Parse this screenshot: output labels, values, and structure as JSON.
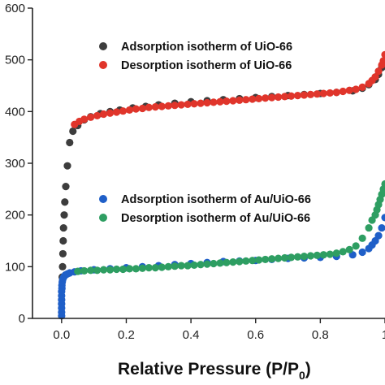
{
  "chart_data": {
    "type": "scatter",
    "title": "",
    "xlabel": "Relative Pressure (P/P",
    "xlabel_subscript": "0",
    "xlabel_close": ")",
    "ylabel": "",
    "xlim": [
      -0.09,
      1.0
    ],
    "ylim": [
      0,
      600
    ],
    "x_ticks": [
      {
        "value": 0.0,
        "label": "0.0"
      },
      {
        "value": 0.2,
        "label": "0.2"
      },
      {
        "value": 0.4,
        "label": "0.4"
      },
      {
        "value": 0.6,
        "label": "0.6"
      },
      {
        "value": 0.8,
        "label": "0.8"
      },
      {
        "value": 1.0,
        "label": "1"
      }
    ],
    "y_ticks": [
      {
        "value": 0,
        "label": "0"
      },
      {
        "value": 100,
        "label": "100"
      },
      {
        "value": 200,
        "label": "200"
      },
      {
        "value": 300,
        "label": "300"
      },
      {
        "value": 400,
        "label": "400"
      },
      {
        "value": 500,
        "label": "500"
      },
      {
        "value": 600,
        "label": "600"
      }
    ],
    "grid": false,
    "legend_placement": "inside",
    "series": [
      {
        "name": "Adsorption isotherm of UiO-66",
        "color": "#3d3d3d",
        "x": [
          0.002,
          0.003,
          0.004,
          0.005,
          0.006,
          0.008,
          0.01,
          0.013,
          0.018,
          0.025,
          0.035,
          0.05,
          0.07,
          0.09,
          0.12,
          0.15,
          0.18,
          0.22,
          0.26,
          0.3,
          0.35,
          0.4,
          0.45,
          0.5,
          0.55,
          0.6,
          0.65,
          0.7,
          0.75,
          0.8,
          0.85,
          0.9,
          0.93,
          0.95,
          0.97,
          0.98,
          0.99,
          1.0
        ],
        "y": [
          80,
          100,
          125,
          150,
          175,
          200,
          225,
          255,
          295,
          340,
          362,
          373,
          384,
          390,
          396,
          400,
          403,
          407,
          410,
          413,
          416,
          419,
          421,
          423,
          425,
          427,
          429,
          431,
          433,
          435,
          437,
          440,
          445,
          452,
          462,
          472,
          485,
          498
        ]
      },
      {
        "name": "Desorption isotherm of UiO-66",
        "color": "#e0352b",
        "x": [
          1.0,
          0.995,
          0.99,
          0.98,
          0.97,
          0.96,
          0.95,
          0.93,
          0.91,
          0.89,
          0.87,
          0.85,
          0.83,
          0.81,
          0.79,
          0.77,
          0.75,
          0.73,
          0.71,
          0.69,
          0.67,
          0.65,
          0.63,
          0.61,
          0.59,
          0.57,
          0.55,
          0.53,
          0.51,
          0.49,
          0.47,
          0.45,
          0.43,
          0.41,
          0.39,
          0.37,
          0.35,
          0.33,
          0.31,
          0.29,
          0.27,
          0.25,
          0.23,
          0.21,
          0.19,
          0.17,
          0.15,
          0.13,
          0.11,
          0.09,
          0.07,
          0.055,
          0.04
        ],
        "y": [
          510,
          498,
          490,
          478,
          467,
          460,
          454,
          447,
          443,
          441,
          439,
          437,
          436,
          435,
          434,
          433,
          432,
          431,
          430,
          429,
          428,
          427,
          426,
          425,
          424,
          423,
          422,
          421,
          420,
          419,
          418,
          417,
          416,
          415,
          414,
          413,
          412,
          411,
          410,
          409,
          408,
          406,
          405,
          403,
          401,
          399,
          397,
          395,
          392,
          389,
          385,
          381,
          375
        ]
      },
      {
        "name": "Adsorption isotherm of Au/UiO-66",
        "color": "#1f5fc8",
        "x": [
          0.0,
          0.0,
          0.0,
          0.0,
          0.0,
          0.0,
          0.0,
          0.001,
          0.001,
          0.002,
          0.003,
          0.005,
          0.008,
          0.012,
          0.018,
          0.025,
          0.04,
          0.06,
          0.1,
          0.15,
          0.2,
          0.25,
          0.3,
          0.35,
          0.4,
          0.45,
          0.5,
          0.55,
          0.6,
          0.65,
          0.7,
          0.75,
          0.8,
          0.85,
          0.9,
          0.93,
          0.95,
          0.96,
          0.97,
          0.98,
          0.99,
          1.0
        ],
        "y": [
          5,
          12,
          20,
          28,
          36,
          44,
          52,
          58,
          64,
          70,
          74,
          78,
          81,
          84,
          86,
          88,
          90,
          92,
          94,
          96,
          98,
          100,
          102,
          104,
          106,
          108,
          110,
          111,
          112,
          114,
          116,
          117,
          118,
          120,
          123,
          128,
          135,
          142,
          150,
          160,
          175,
          195
        ]
      },
      {
        "name": "Desorption isotherm of Au/UiO-66",
        "color": "#2e9e62",
        "x": [
          1.0,
          0.995,
          0.99,
          0.985,
          0.98,
          0.975,
          0.97,
          0.96,
          0.95,
          0.93,
          0.91,
          0.89,
          0.87,
          0.85,
          0.83,
          0.81,
          0.79,
          0.77,
          0.75,
          0.73,
          0.71,
          0.69,
          0.67,
          0.65,
          0.63,
          0.61,
          0.59,
          0.57,
          0.55,
          0.53,
          0.51,
          0.49,
          0.47,
          0.45,
          0.43,
          0.41,
          0.39,
          0.37,
          0.35,
          0.33,
          0.31,
          0.29,
          0.27,
          0.25,
          0.23,
          0.21,
          0.19,
          0.17,
          0.15,
          0.13,
          0.11,
          0.09,
          0.07,
          0.05
        ],
        "y": [
          260,
          250,
          240,
          230,
          220,
          210,
          200,
          190,
          175,
          155,
          140,
          133,
          129,
          126,
          124,
          123,
          122,
          121,
          120,
          119,
          118,
          117,
          116,
          115,
          114,
          113,
          112,
          111,
          110,
          109,
          108,
          107,
          106,
          105,
          104,
          103,
          102,
          102,
          101,
          100,
          99,
          98,
          98,
          97,
          96,
          96,
          95,
          95,
          94,
          94,
          93,
          93,
          92,
          91
        ]
      }
    ]
  }
}
